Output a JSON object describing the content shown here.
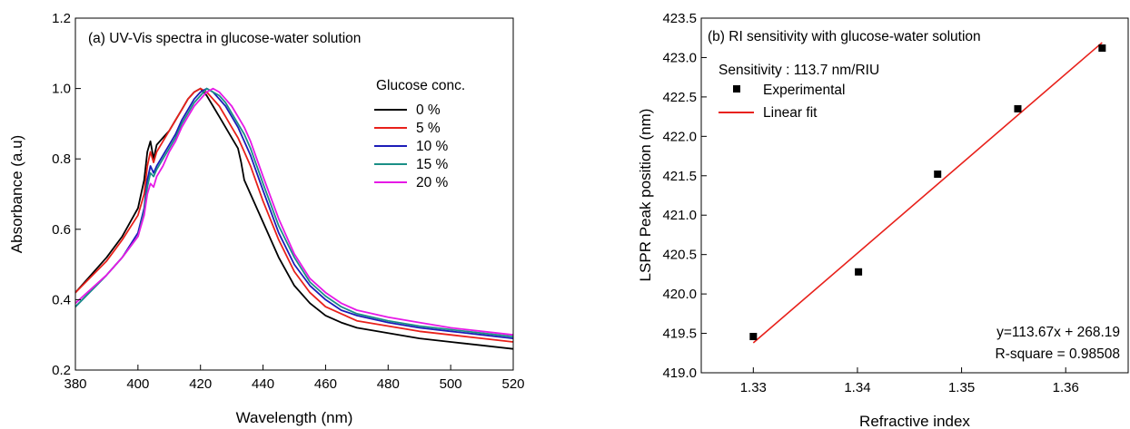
{
  "chart_data": [
    {
      "type": "line",
      "title": "(a) UV-Vis spectra in glucose-water solution",
      "xlabel": "Wavelength (nm)",
      "ylabel": "Absorbance (a.u)",
      "xlim": [
        380,
        520
      ],
      "ylim": [
        0.2,
        1.2
      ],
      "xticks": [
        380,
        400,
        420,
        440,
        460,
        480,
        500,
        520
      ],
      "yticks": [
        0.2,
        0.4,
        0.6,
        0.8,
        1.0,
        1.2
      ],
      "xtick_labels": [
        "380",
        "400",
        "420",
        "440",
        "460",
        "480",
        "500",
        "520"
      ],
      "ytick_labels": [
        "0.2",
        "0.4",
        "0.6",
        "0.8",
        "1.0",
        "1.2"
      ],
      "grid": false,
      "legend_title": "Glucose conc.",
      "legend_placement": "right",
      "series": [
        {
          "name": "0 %",
          "color": "#000000",
          "x": [
            380,
            390,
            395,
            400,
            402,
            403,
            404,
            405,
            406,
            408,
            410,
            412,
            414,
            416,
            418,
            420,
            421,
            422,
            424,
            426,
            428,
            430,
            432,
            433,
            434,
            436,
            440,
            445,
            450,
            455,
            460,
            465,
            470,
            480,
            490,
            500,
            510,
            520
          ],
          "y": [
            0.42,
            0.52,
            0.58,
            0.66,
            0.74,
            0.82,
            0.85,
            0.8,
            0.84,
            0.86,
            0.88,
            0.91,
            0.94,
            0.97,
            0.99,
            1.0,
            0.99,
            0.98,
            0.95,
            0.92,
            0.89,
            0.86,
            0.83,
            0.79,
            0.74,
            0.7,
            0.62,
            0.52,
            0.44,
            0.39,
            0.355,
            0.335,
            0.32,
            0.305,
            0.29,
            0.28,
            0.27,
            0.26
          ]
        },
        {
          "name": "5 %",
          "color": "#e8211b",
          "x": [
            380,
            390,
            395,
            400,
            402,
            403,
            404,
            405,
            406,
            408,
            410,
            412,
            414,
            416,
            418,
            420,
            422,
            424,
            426,
            428,
            430,
            432,
            434,
            436,
            440,
            445,
            450,
            455,
            460,
            465,
            470,
            480,
            490,
            500,
            510,
            520
          ],
          "y": [
            0.42,
            0.51,
            0.57,
            0.64,
            0.7,
            0.78,
            0.82,
            0.79,
            0.82,
            0.85,
            0.88,
            0.91,
            0.94,
            0.97,
            0.99,
            1.0,
            0.99,
            0.97,
            0.95,
            0.92,
            0.89,
            0.86,
            0.82,
            0.78,
            0.68,
            0.57,
            0.48,
            0.42,
            0.38,
            0.36,
            0.34,
            0.325,
            0.31,
            0.3,
            0.29,
            0.28
          ]
        },
        {
          "name": "10 %",
          "color": "#1c1cb8",
          "x": [
            380,
            390,
            395,
            400,
            402,
            403,
            404,
            405,
            406,
            408,
            410,
            412,
            414,
            416,
            418,
            420,
            422,
            424,
            426,
            428,
            430,
            432,
            434,
            436,
            440,
            445,
            450,
            455,
            460,
            465,
            470,
            480,
            490,
            500,
            510,
            520
          ],
          "y": [
            0.38,
            0.47,
            0.52,
            0.59,
            0.66,
            0.74,
            0.78,
            0.76,
            0.78,
            0.81,
            0.84,
            0.87,
            0.91,
            0.94,
            0.97,
            0.99,
            1.0,
            0.99,
            0.97,
            0.95,
            0.92,
            0.89,
            0.85,
            0.81,
            0.71,
            0.59,
            0.5,
            0.44,
            0.4,
            0.37,
            0.355,
            0.335,
            0.32,
            0.31,
            0.3,
            0.29
          ]
        },
        {
          "name": "15 %",
          "color": "#1a8f86",
          "x": [
            380,
            390,
            395,
            400,
            402,
            403,
            404,
            405,
            406,
            408,
            410,
            412,
            414,
            416,
            418,
            420,
            422,
            424,
            426,
            428,
            430,
            432,
            434,
            436,
            440,
            445,
            450,
            455,
            460,
            465,
            470,
            480,
            490,
            500,
            510,
            520
          ],
          "y": [
            0.38,
            0.47,
            0.52,
            0.58,
            0.65,
            0.72,
            0.76,
            0.75,
            0.77,
            0.8,
            0.83,
            0.86,
            0.9,
            0.93,
            0.96,
            0.98,
            1.0,
            0.99,
            0.98,
            0.96,
            0.93,
            0.9,
            0.87,
            0.83,
            0.73,
            0.61,
            0.52,
            0.45,
            0.41,
            0.38,
            0.36,
            0.34,
            0.325,
            0.315,
            0.305,
            0.295
          ]
        },
        {
          "name": "20 %",
          "color": "#e619e6",
          "x": [
            380,
            390,
            395,
            400,
            402,
            403,
            404,
            405,
            406,
            408,
            410,
            412,
            414,
            416,
            418,
            420,
            422,
            424,
            426,
            428,
            430,
            432,
            434,
            436,
            440,
            445,
            450,
            455,
            460,
            465,
            470,
            480,
            490,
            500,
            510,
            520
          ],
          "y": [
            0.39,
            0.47,
            0.52,
            0.58,
            0.64,
            0.7,
            0.73,
            0.72,
            0.75,
            0.78,
            0.82,
            0.85,
            0.89,
            0.92,
            0.95,
            0.97,
            0.99,
            1.0,
            0.99,
            0.97,
            0.95,
            0.92,
            0.89,
            0.85,
            0.75,
            0.63,
            0.53,
            0.46,
            0.42,
            0.39,
            0.37,
            0.35,
            0.335,
            0.32,
            0.31,
            0.3
          ]
        }
      ]
    },
    {
      "type": "scatter",
      "title": "(b) RI sensitivity with glucose-water solution",
      "xlabel": "Refractive index",
      "ylabel": "LSPR Peak position (nm)",
      "xlim": [
        1.325,
        1.366
      ],
      "ylim": [
        419.0,
        423.5
      ],
      "xticks": [
        1.33,
        1.34,
        1.35,
        1.36
      ],
      "yticks": [
        419.0,
        419.5,
        420.0,
        420.5,
        421.0,
        421.5,
        422.0,
        422.5,
        423.0,
        423.5
      ],
      "xtick_labels": [
        "1.33",
        "1.34",
        "1.35",
        "1.36"
      ],
      "ytick_labels": [
        "419.0",
        "419.5",
        "420.0",
        "420.5",
        "421.0",
        "421.5",
        "422.0",
        "422.5",
        "423.0",
        "423.5"
      ],
      "grid": false,
      "sensitivity_label": "Sensitivity : 113.7 nm/RIU",
      "legend_placement": "top-left",
      "series": [
        {
          "name": "Experimental",
          "color": "#000000",
          "x": [
            1.33,
            1.3401,
            1.3477,
            1.3554,
            1.3635
          ],
          "y": [
            419.46,
            420.28,
            421.52,
            422.35,
            423.12
          ]
        },
        {
          "name": "Linear fit",
          "color": "#e8211b",
          "x": [
            1.33,
            1.3635
          ],
          "y": [
            419.38,
            423.19
          ]
        }
      ],
      "annotations": [
        "y=113.67x + 268.19",
        "R-square = 0.98508"
      ]
    }
  ]
}
